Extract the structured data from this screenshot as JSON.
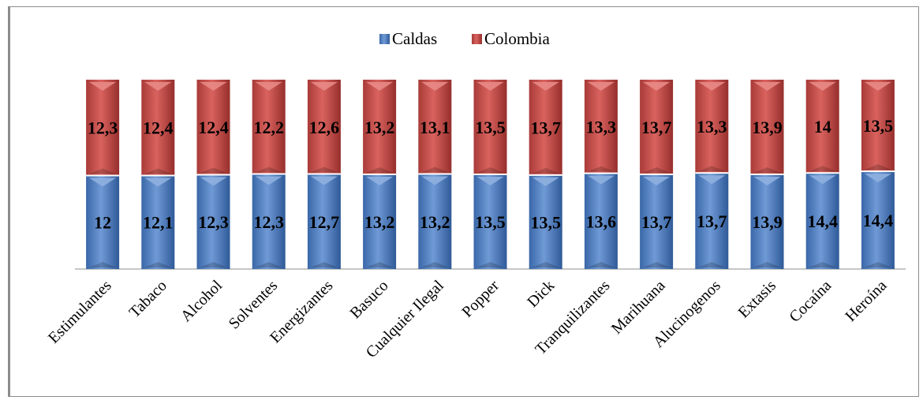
{
  "chart_data": {
    "type": "bar",
    "stacked": true,
    "legend_position": "top",
    "categories": [
      "Estimulantes",
      "Tabaco",
      "Alcohol",
      "Solventes",
      "Energizantes",
      "Basuco",
      "Cualquier Ilegal",
      "Popper",
      "Dick",
      "Tranquilizantes",
      "Marihuana",
      "Alucinogenos",
      "Extasis",
      "Cocaína",
      "Heroína"
    ],
    "series": [
      {
        "name": "Caldas",
        "color": "#4f7fc0",
        "values": [
          12,
          12.1,
          12.3,
          12.3,
          12.7,
          13.2,
          13.2,
          13.5,
          13.5,
          13.6,
          13.7,
          13.7,
          13.9,
          14.4,
          14.4
        ],
        "labels": [
          "12",
          "12,1",
          "12,3",
          "12,3",
          "12,7",
          "13,2",
          "13,2",
          "13,5",
          "13,5",
          "13,6",
          "13,7",
          "13,7",
          "13,9",
          "14,4",
          "14,4"
        ]
      },
      {
        "name": "Colombia",
        "color": "#c0504d",
        "values": [
          12.3,
          12.4,
          12.4,
          12.2,
          12.6,
          13.2,
          13.1,
          13.5,
          13.7,
          13.3,
          13.7,
          13.3,
          13.9,
          14,
          13.5
        ],
        "labels": [
          "12,3",
          "12,4",
          "12,4",
          "12,2",
          "12,6",
          "13,2",
          "13,1",
          "13,5",
          "13,7",
          "13,3",
          "13,7",
          "13,3",
          "13,9",
          "14",
          "13,5"
        ]
      }
    ],
    "percent_stacked": true
  }
}
